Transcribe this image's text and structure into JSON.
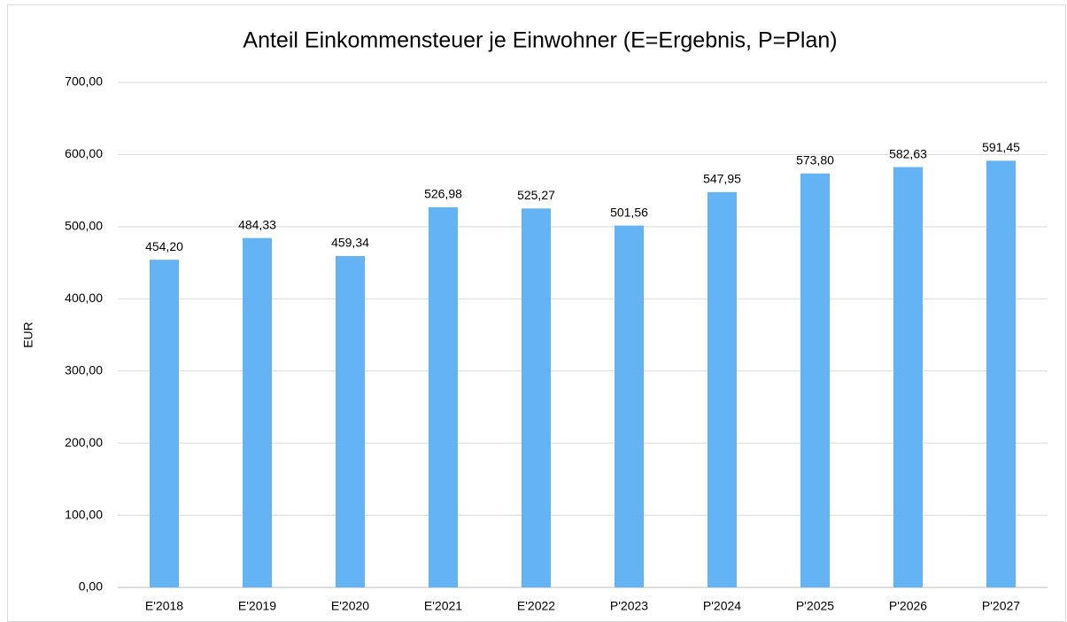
{
  "chart_data": {
    "type": "bar",
    "title": "Anteil Einkommensteuer je Einwohner (E=Ergebnis, P=Plan)",
    "y_label": "EUR",
    "categories": [
      "E'2018",
      "E'2019",
      "E'2020",
      "E'2021",
      "E'2022",
      "P'2023",
      "P'2024",
      "P'2025",
      "P'2026",
      "P'2027"
    ],
    "values": [
      454.2,
      484.33,
      459.34,
      526.98,
      525.27,
      501.56,
      547.95,
      573.8,
      582.63,
      591.45
    ],
    "value_labels": [
      "454,20",
      "484,33",
      "459,34",
      "526,98",
      "525,27",
      "501,56",
      "547,95",
      "573,80",
      "582,63",
      "591,45"
    ],
    "color": "#63b3f5",
    "ylim": [
      0,
      700
    ],
    "yticks": [
      {
        "value": 0,
        "label": "0,00"
      },
      {
        "value": 100,
        "label": "100,00"
      },
      {
        "value": 200,
        "label": "200,00"
      },
      {
        "value": 300,
        "label": "300,00"
      },
      {
        "value": 400,
        "label": "400,00"
      },
      {
        "value": 500,
        "label": "500,00"
      },
      {
        "value": 600,
        "label": "600,00"
      },
      {
        "value": 700,
        "label": "700,00"
      }
    ],
    "grid": true
  }
}
